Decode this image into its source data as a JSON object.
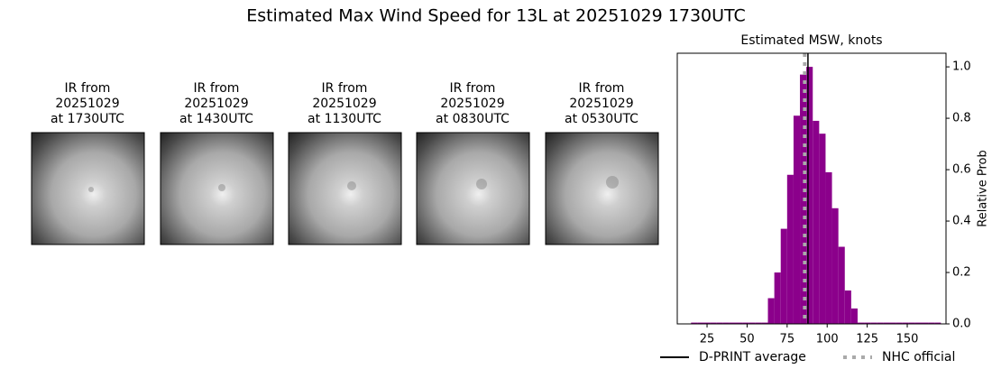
{
  "title": "Estimated Max Wind Speed for 13L at 20251029 1730UTC",
  "panels": [
    {
      "caption": [
        "IR from",
        "20251029",
        "at 1730UTC"
      ]
    },
    {
      "caption": [
        "IR from",
        "20251029",
        "at 1430UTC"
      ]
    },
    {
      "caption": [
        "IR from",
        "20251029",
        "at 1130UTC"
      ]
    },
    {
      "caption": [
        "IR from",
        "20251029",
        "at 0830UTC"
      ]
    },
    {
      "caption": [
        "IR from",
        "20251029",
        "at 0530UTC"
      ]
    }
  ],
  "chart_data": {
    "type": "histogram",
    "title": "Estimated MSW, knots",
    "y_label": "Relative Prob",
    "color": "#8b008b",
    "bins": [
      15,
      19,
      23,
      27,
      31,
      35,
      39,
      43,
      47,
      51,
      55,
      59,
      63,
      67,
      71,
      75,
      79,
      83,
      87,
      91,
      95,
      99,
      103,
      107,
      111,
      115,
      119,
      123,
      127,
      131,
      135,
      139,
      143,
      147,
      151,
      155,
      159,
      163,
      167,
      171
    ],
    "values": [
      0.005,
      0.005,
      0.005,
      0.005,
      0.005,
      0.005,
      0.005,
      0.005,
      0.005,
      0.005,
      0.005,
      0.005,
      0.1,
      0.2,
      0.37,
      0.58,
      0.81,
      0.97,
      1.0,
      0.79,
      0.74,
      0.59,
      0.45,
      0.3,
      0.13,
      0.06,
      0.005,
      0.005,
      0.005,
      0.005,
      0.005,
      0.005,
      0.005,
      0.005,
      0.005,
      0.005,
      0.005,
      0.005,
      0.005
    ],
    "xlim": [
      6.4,
      174.2
    ],
    "xticks": [
      25,
      50,
      75,
      100,
      125,
      150
    ],
    "ylim": [
      0,
      1.053
    ],
    "yticks": [
      {
        "value": 0,
        "label": "0.0"
      },
      0.2,
      0.4,
      0.6,
      0.8,
      {
        "value": 1,
        "label": "1.0"
      }
    ],
    "lines": [
      {
        "name": "D-PRINT average",
        "color": "#000000",
        "x": 88,
        "style": "solid"
      },
      {
        "name": "NHC official",
        "color": "#aaaaaa",
        "x": 86,
        "style": "dotted"
      }
    ]
  }
}
